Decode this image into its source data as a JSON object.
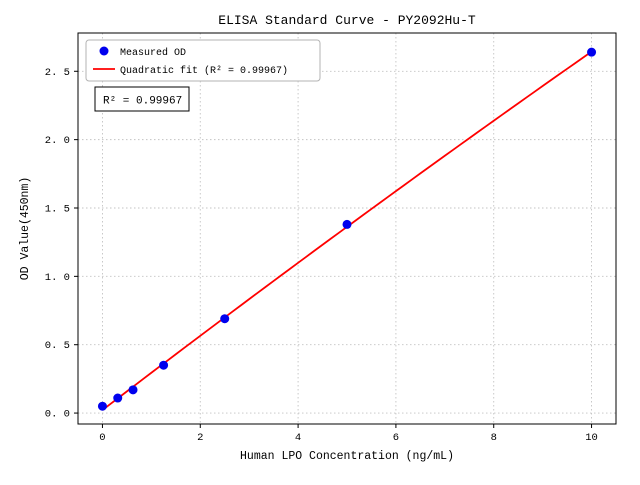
{
  "figure": {
    "background": "#ffffff"
  },
  "chart_data": {
    "type": "scatter",
    "title": "ELISA Standard Curve - PY2092Hu-T",
    "xlabel": "Human LPO Concentration (ng/mL)",
    "ylabel": "OD Value(450nm)",
    "xlim": [
      -0.5,
      10.5
    ],
    "ylim": [
      -0.08,
      2.78
    ],
    "x_ticks": [
      0,
      2,
      4,
      6,
      8,
      10
    ],
    "x_tick_labels": [
      "0",
      "2",
      "4",
      "6",
      "8",
      "10"
    ],
    "y_ticks": [
      0.0,
      0.5,
      1.0,
      1.5,
      2.0,
      2.5
    ],
    "y_tick_labels": [
      "0. 0",
      "0. 5",
      "1. 0",
      "1. 5",
      "2. 0",
      "2. 5"
    ],
    "grid": true,
    "legend_position": "upper-left",
    "series": [
      {
        "name": "Measured OD",
        "type": "scatter",
        "marker": "circle",
        "color": "#0000ee",
        "x": [
          0,
          0.3125,
          0.625,
          1.25,
          2.5,
          5,
          10
        ],
        "y": [
          0.05,
          0.11,
          0.17,
          0.35,
          0.69,
          1.38,
          2.64
        ]
      },
      {
        "name": "Quadratic fit (R² = 0.99967)",
        "type": "quadratic-fit-line",
        "color": "#ff0000",
        "fit_of_series": 0,
        "x_range": [
          0,
          10
        ]
      }
    ],
    "annotation": {
      "text": "R² = 0.99967",
      "color": "#000000"
    }
  },
  "colors": {
    "grid": "#c3c3c3",
    "axis": "#000000",
    "legend_border": "#b3b3b3",
    "annotation_border": "#000000"
  }
}
